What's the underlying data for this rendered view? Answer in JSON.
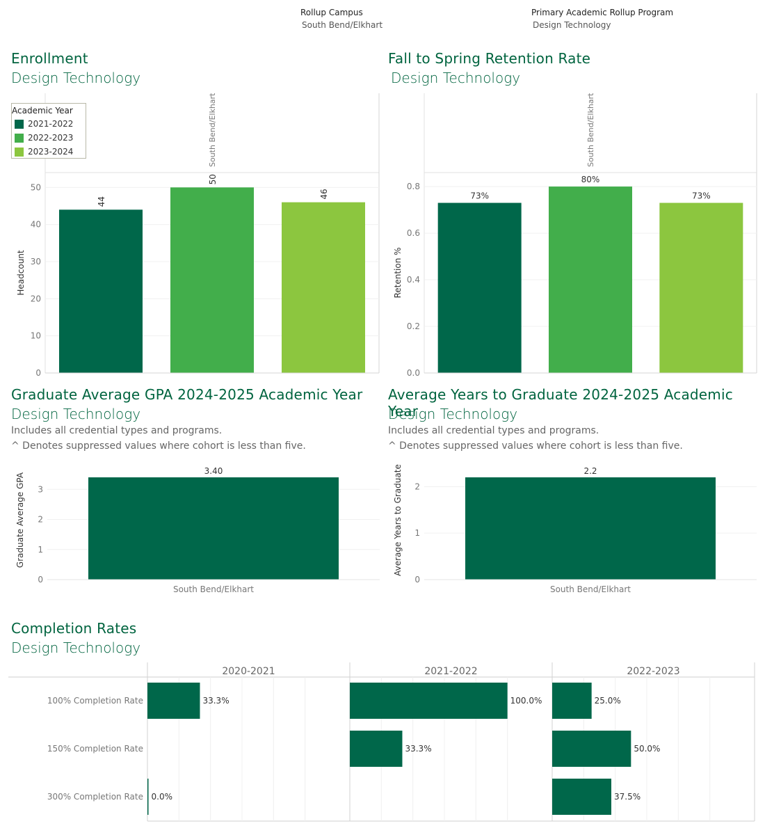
{
  "filters": {
    "campus": {
      "label": "Rollup Campus",
      "value": "South Bend/Elkhart"
    },
    "program": {
      "label": "Primary Academic Rollup Program",
      "value": "Design Technology"
    }
  },
  "colors": {
    "title": "#00643f",
    "y2122": "#00674a",
    "y2223": "#42ae4b",
    "y2324": "#8cc63f"
  },
  "enrollment": {
    "title": "Enrollment",
    "subtitle": "Design Technology",
    "legend": {
      "title": "Academic Year",
      "items": [
        {
          "label": "2021-2022",
          "color": "#00674a"
        },
        {
          "label": "2022-2023",
          "color": "#42ae4b"
        },
        {
          "label": "2023-2024",
          "color": "#8cc63f"
        }
      ]
    },
    "chart_data": {
      "type": "bar",
      "column_header": "South Bend/Elkhart",
      "categories": [
        "2021-2022",
        "2022-2023",
        "2023-2024"
      ],
      "values": [
        44,
        50,
        46
      ],
      "value_labels": [
        "44",
        "50",
        "46"
      ],
      "ylabel": "Headcount",
      "ylim": [
        0,
        54
      ],
      "yticks": [
        0,
        10,
        20,
        30,
        40,
        50
      ],
      "ytick_labels": [
        "0",
        "10",
        "20",
        "30",
        "40",
        "50"
      ]
    }
  },
  "retention": {
    "title": "Fall to Spring Retention Rate",
    "subtitle": "Design Technology",
    "chart_data": {
      "type": "bar",
      "column_header": "South Bend/Elkhart",
      "categories": [
        "2021-2022",
        "2022-2023",
        "2023-2024"
      ],
      "values": [
        0.73,
        0.8,
        0.73
      ],
      "value_labels": [
        "73%",
        "80%",
        "73%"
      ],
      "ylabel": "Retention %",
      "ylim": [
        0,
        0.86
      ],
      "yticks": [
        0,
        0.2,
        0.4,
        0.6,
        0.8
      ],
      "ytick_labels": [
        "0.0",
        "0.2",
        "0.4",
        "0.6",
        "0.8"
      ]
    }
  },
  "gpa": {
    "title": "Graduate Average GPA 2024-2025 Academic Year",
    "subtitle": "Design Technology",
    "note1": "Includes all credential types and programs.",
    "note2": "^ Denotes suppressed values where cohort is less than five.",
    "chart_data": {
      "type": "bar",
      "categories": [
        "South Bend/Elkhart"
      ],
      "values": [
        3.4
      ],
      "value_labels": [
        "3.40"
      ],
      "ylabel": "Graduate Average GPA",
      "ylim": [
        0,
        3.4
      ],
      "yticks": [
        0,
        1,
        2,
        3
      ],
      "ytick_labels": [
        "0",
        "1",
        "2",
        "3"
      ]
    }
  },
  "years": {
    "title": "Average Years to Graduate 2024-2025 Academic Year",
    "subtitle": "Design Technology",
    "note1": "Includes all credential types and programs.",
    "note2": "^ Denotes suppressed values where cohort is less than five.",
    "chart_data": {
      "type": "bar",
      "categories": [
        "South Bend/Elkhart"
      ],
      "values": [
        2.2
      ],
      "value_labels": [
        "2.2"
      ],
      "ylabel": "Average Years to Graduate",
      "ylim": [
        0,
        2.2
      ],
      "yticks": [
        0,
        1,
        2
      ],
      "ytick_labels": [
        "0",
        "1",
        "2"
      ]
    }
  },
  "completion": {
    "title": "Completion Rates",
    "subtitle": "Design Technology",
    "chart_data": {
      "type": "bar",
      "orientation": "horizontal",
      "columns": [
        "2020-2021",
        "2021-2022",
        "2022-2023"
      ],
      "rows": [
        "100% Completion Rate",
        "150% Completion Rate",
        "300% Completion Rate"
      ],
      "values": [
        [
          0.333,
          1.0,
          0.25
        ],
        [
          null,
          0.333,
          0.5
        ],
        [
          0.0,
          null,
          0.375
        ]
      ],
      "value_labels": [
        [
          "33.3%",
          "100.0%",
          "25.0%"
        ],
        [
          null,
          "33.3%",
          "50.0%"
        ],
        [
          "0.0%",
          null,
          "37.5%"
        ]
      ],
      "xlim": [
        0,
        1.2
      ]
    }
  }
}
